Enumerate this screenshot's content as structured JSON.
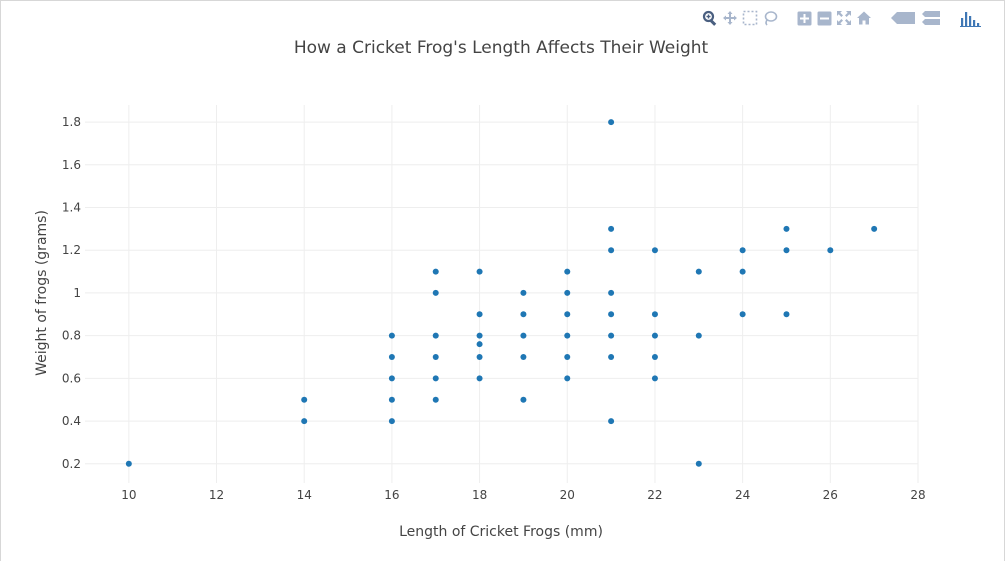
{
  "modebar": {
    "buttons": [
      "zoom-icon",
      "pan-icon",
      "box-select-icon",
      "lasso-select-icon",
      "zoom-in-icon",
      "zoom-out-icon",
      "autoscale-icon",
      "reset-axes-icon",
      "hover-closest-icon",
      "hover-compare-icon",
      "plotly-logo-icon"
    ],
    "color": "#a8b6cc",
    "active_color": "#4a5f80",
    "logo_color": "#3f77b5"
  },
  "chart_data": {
    "type": "scatter",
    "title": "How a Cricket Frog's Length Affects Their Weight",
    "xlabel": "Length of Cricket Frogs (mm)",
    "ylabel": "Weight of frogs (grams)",
    "xlim": [
      9,
      28
    ],
    "ylim": [
      0.11,
      1.88
    ],
    "xticks": [
      10,
      12,
      14,
      16,
      18,
      20,
      22,
      24,
      26,
      28
    ],
    "yticks": [
      0.2,
      0.4,
      0.6,
      0.8,
      1,
      1.2,
      1.4,
      1.6,
      1.8
    ],
    "grid": true,
    "marker_color": "#1f77b4",
    "points": [
      [
        10,
        0.2
      ],
      [
        14,
        0.5
      ],
      [
        14,
        0.4
      ],
      [
        16,
        0.8
      ],
      [
        16,
        0.7
      ],
      [
        16,
        0.6
      ],
      [
        16,
        0.5
      ],
      [
        16,
        0.4
      ],
      [
        17,
        1.1
      ],
      [
        17,
        1.0
      ],
      [
        17,
        0.8
      ],
      [
        17,
        0.7
      ],
      [
        17,
        0.6
      ],
      [
        17,
        0.5
      ],
      [
        18,
        1.1
      ],
      [
        18,
        0.9
      ],
      [
        18,
        0.8
      ],
      [
        18,
        0.76
      ],
      [
        18,
        0.7
      ],
      [
        18,
        0.6
      ],
      [
        19,
        1.0
      ],
      [
        19,
        0.9
      ],
      [
        19,
        0.8
      ],
      [
        19,
        0.7
      ],
      [
        19,
        0.5
      ],
      [
        20,
        1.1
      ],
      [
        20,
        1.0
      ],
      [
        20,
        0.9
      ],
      [
        20,
        0.8
      ],
      [
        20,
        0.7
      ],
      [
        20,
        0.6
      ],
      [
        21,
        1.8
      ],
      [
        21,
        1.3
      ],
      [
        21,
        1.2
      ],
      [
        21,
        1.0
      ],
      [
        21,
        0.9
      ],
      [
        21,
        0.8
      ],
      [
        21,
        0.7
      ],
      [
        21,
        0.4
      ],
      [
        22,
        1.2
      ],
      [
        22,
        0.9
      ],
      [
        22,
        0.8
      ],
      [
        22,
        0.7
      ],
      [
        22,
        0.6
      ],
      [
        23,
        1.1
      ],
      [
        23,
        0.8
      ],
      [
        23,
        0.2
      ],
      [
        24,
        1.2
      ],
      [
        24,
        1.1
      ],
      [
        24,
        0.9
      ],
      [
        25,
        1.3
      ],
      [
        25,
        1.2
      ],
      [
        25,
        0.9
      ],
      [
        26,
        1.2
      ],
      [
        27,
        1.3
      ]
    ]
  }
}
